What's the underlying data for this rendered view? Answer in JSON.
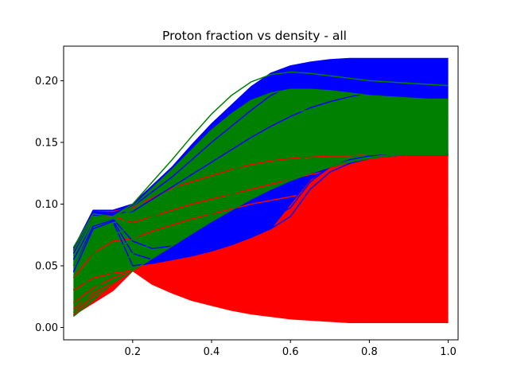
{
  "chart_data": {
    "type": "line",
    "title": "Proton fraction vs density - all",
    "xlabel": "",
    "ylabel": "",
    "xlim": [
      0.025,
      1.025
    ],
    "ylim": [
      -0.01,
      0.228
    ],
    "x_ticks": [
      0.2,
      0.4,
      0.6,
      0.8,
      1.0
    ],
    "x_tick_labels": [
      "0.2",
      "0.4",
      "0.6",
      "0.8",
      "1.0"
    ],
    "y_ticks": [
      0.0,
      0.05,
      0.1,
      0.15,
      0.2
    ],
    "y_tick_labels": [
      "0.00",
      "0.05",
      "0.10",
      "0.15",
      "0.20"
    ],
    "grid": false,
    "legend": "none",
    "x": [
      0.05,
      0.1,
      0.15,
      0.2,
      0.25,
      0.3,
      0.35,
      0.4,
      0.45,
      0.5,
      0.55,
      0.6,
      0.65,
      0.7,
      0.75,
      0.8,
      0.85,
      0.9,
      0.95,
      1.0
    ],
    "series": [
      {
        "color": "#ff0000",
        "values": [
          0.063,
          0.095,
          0.094,
          0.097,
          0.105,
          0.113,
          0.118,
          0.123,
          0.128,
          0.132,
          0.135,
          0.137,
          0.138,
          0.139,
          0.139,
          0.14,
          0.14,
          0.14,
          0.14,
          0.14
        ]
      },
      {
        "color": "#ff0000",
        "values": [
          0.06,
          0.088,
          0.09,
          0.085,
          0.09,
          0.095,
          0.1,
          0.104,
          0.108,
          0.112,
          0.116,
          0.12,
          0.124,
          0.127,
          0.13,
          0.133,
          0.135,
          0.137,
          0.138,
          0.139
        ]
      },
      {
        "color": "#ff0000",
        "values": [
          0.04,
          0.06,
          0.07,
          0.072,
          0.078,
          0.083,
          0.088,
          0.092,
          0.096,
          0.1,
          0.103,
          0.106,
          0.109,
          0.111,
          0.113,
          0.115,
          0.117,
          0.118,
          0.119,
          0.12
        ]
      },
      {
        "color": "#ff0000",
        "values": [
          0.03,
          0.04,
          0.044,
          0.046,
          0.05,
          0.054,
          0.058,
          0.062,
          0.066,
          0.07,
          0.074,
          0.078,
          0.082,
          0.086,
          0.089,
          0.092,
          0.095,
          0.097,
          0.099,
          0.1
        ]
      },
      {
        "color": "#ff0000",
        "values": [
          0.02,
          0.032,
          0.04,
          0.046,
          0.047,
          0.048,
          0.049,
          0.05,
          0.052,
          0.055,
          0.058,
          0.061,
          0.064,
          0.067,
          0.07,
          0.073,
          0.075,
          0.077,
          0.079,
          0.08
        ]
      },
      {
        "color": "#ff0000",
        "values": [
          0.015,
          0.028,
          0.036,
          0.046,
          0.043,
          0.041,
          0.04,
          0.04,
          0.041,
          0.042,
          0.044,
          0.046,
          0.048,
          0.05,
          0.052,
          0.054,
          0.056,
          0.058,
          0.06,
          0.062
        ]
      },
      {
        "color": "#ff0000",
        "values": [
          0.012,
          0.025,
          0.034,
          0.046,
          0.04,
          0.036,
          0.033,
          0.031,
          0.03,
          0.03,
          0.03,
          0.031,
          0.032,
          0.033,
          0.034,
          0.035,
          0.036,
          0.037,
          0.038,
          0.04
        ]
      },
      {
        "color": "#ff0000",
        "values": [
          0.01,
          0.022,
          0.032,
          0.046,
          0.038,
          0.033,
          0.029,
          0.026,
          0.024,
          0.022,
          0.021,
          0.02,
          0.02,
          0.02,
          0.02,
          0.021,
          0.021,
          0.022,
          0.022,
          0.023
        ]
      },
      {
        "color": "#ff0000",
        "values": [
          0.01,
          0.02,
          0.03,
          0.046,
          0.036,
          0.03,
          0.025,
          0.021,
          0.018,
          0.016,
          0.014,
          0.012,
          0.011,
          0.011,
          0.011,
          0.011,
          0.011,
          0.012,
          0.012,
          0.012
        ]
      },
      {
        "color": "#ff0000",
        "values": [
          0.01,
          0.02,
          0.03,
          0.046,
          0.035,
          0.028,
          0.022,
          0.018,
          0.014,
          0.011,
          0.009,
          0.007,
          0.006,
          0.005,
          0.004,
          0.004,
          0.004,
          0.004,
          0.004,
          0.004
        ]
      },
      {
        "color": "#0000ff",
        "values": [
          0.064,
          0.095,
          0.095,
          0.1,
          0.115,
          0.13,
          0.148,
          0.165,
          0.18,
          0.195,
          0.206,
          0.212,
          0.215,
          0.217,
          0.218,
          0.218,
          0.218,
          0.218,
          0.218,
          0.218
        ]
      },
      {
        "color": "#0000ff",
        "values": [
          0.062,
          0.092,
          0.093,
          0.098,
          0.11,
          0.122,
          0.136,
          0.15,
          0.163,
          0.176,
          0.188,
          0.196,
          0.201,
          0.204,
          0.205,
          0.206,
          0.206,
          0.206,
          0.206,
          0.206
        ]
      },
      {
        "color": "#0000ff",
        "values": [
          0.06,
          0.09,
          0.092,
          0.094,
          0.104,
          0.114,
          0.124,
          0.134,
          0.144,
          0.154,
          0.163,
          0.171,
          0.178,
          0.183,
          0.187,
          0.19,
          0.192,
          0.193,
          0.194,
          0.195
        ]
      },
      {
        "color": "#0000ff",
        "values": [
          0.055,
          0.085,
          0.088,
          0.07,
          0.064,
          0.066,
          0.07,
          0.074,
          0.078,
          0.082,
          0.088,
          0.097,
          0.118,
          0.13,
          0.136,
          0.139,
          0.14,
          0.14,
          0.14,
          0.14
        ]
      },
      {
        "color": "#0000ff",
        "values": [
          0.05,
          0.082,
          0.087,
          0.06,
          0.055,
          0.058,
          0.062,
          0.066,
          0.07,
          0.075,
          0.08,
          0.09,
          0.112,
          0.126,
          0.133,
          0.137,
          0.139,
          0.14,
          0.14,
          0.14
        ]
      },
      {
        "color": "#0000ff",
        "values": [
          0.045,
          0.08,
          0.086,
          0.05,
          0.052,
          0.055,
          0.058,
          0.062,
          0.067,
          0.073,
          0.08,
          0.1,
          0.12,
          0.13,
          0.135,
          0.138,
          0.139,
          0.14,
          0.14,
          0.14
        ]
      },
      {
        "color": "#008000",
        "values": [
          0.065,
          0.092,
          0.09,
          0.1,
          0.118,
          0.136,
          0.155,
          0.173,
          0.188,
          0.199,
          0.205,
          0.207,
          0.206,
          0.204,
          0.202,
          0.2,
          0.199,
          0.198,
          0.197,
          0.196
        ]
      },
      {
        "color": "#008000",
        "values": [
          0.062,
          0.09,
          0.09,
          0.098,
          0.113,
          0.128,
          0.144,
          0.16,
          0.173,
          0.184,
          0.19,
          0.193,
          0.193,
          0.192,
          0.19,
          0.188,
          0.187,
          0.186,
          0.185,
          0.185
        ]
      },
      {
        "color": "#008000",
        "values": [
          0.058,
          0.088,
          0.089,
          0.095,
          0.108,
          0.12,
          0.133,
          0.146,
          0.157,
          0.166,
          0.172,
          0.175,
          0.176,
          0.176,
          0.175,
          0.174,
          0.173,
          0.172,
          0.171,
          0.17
        ]
      },
      {
        "color": "#008000",
        "values": [
          0.05,
          0.085,
          0.088,
          0.092,
          0.102,
          0.112,
          0.122,
          0.132,
          0.141,
          0.149,
          0.155,
          0.159,
          0.161,
          0.162,
          0.162,
          0.161,
          0.16,
          0.159,
          0.158,
          0.157
        ]
      },
      {
        "color": "#008000",
        "values": [
          0.04,
          0.075,
          0.085,
          0.088,
          0.096,
          0.104,
          0.112,
          0.12,
          0.127,
          0.134,
          0.14,
          0.145,
          0.148,
          0.15,
          0.151,
          0.151,
          0.151,
          0.15,
          0.149,
          0.148
        ]
      },
      {
        "color": "#008000",
        "values": [
          0.03,
          0.06,
          0.075,
          0.082,
          0.09,
          0.097,
          0.104,
          0.111,
          0.118,
          0.124,
          0.13,
          0.135,
          0.139,
          0.142,
          0.144,
          0.145,
          0.145,
          0.145,
          0.145,
          0.144
        ]
      },
      {
        "color": "#008000",
        "values": [
          0.02,
          0.045,
          0.06,
          0.072,
          0.08,
          0.087,
          0.094,
          0.101,
          0.108,
          0.114,
          0.12,
          0.126,
          0.131,
          0.135,
          0.138,
          0.14,
          0.141,
          0.142,
          0.142,
          0.142
        ]
      },
      {
        "color": "#008000",
        "values": [
          0.012,
          0.03,
          0.045,
          0.06,
          0.068,
          0.076,
          0.084,
          0.092,
          0.1,
          0.107,
          0.114,
          0.12,
          0.126,
          0.131,
          0.135,
          0.138,
          0.14,
          0.141,
          0.141,
          0.141
        ]
      },
      {
        "color": "#008000",
        "values": [
          0.009,
          0.022,
          0.036,
          0.046,
          0.056,
          0.066,
          0.076,
          0.086,
          0.095,
          0.104,
          0.112,
          0.119,
          0.125,
          0.13,
          0.134,
          0.137,
          0.139,
          0.14,
          0.14,
          0.14
        ]
      }
    ],
    "fill_bands": [
      {
        "color": "#ff0000",
        "upper_series": 0,
        "lower_series": 9
      },
      {
        "color": "#0000ff",
        "upper_series": 10,
        "lower_series": 15
      },
      {
        "color": "#008000",
        "upper_series": 17,
        "lower_series": 24
      }
    ]
  }
}
